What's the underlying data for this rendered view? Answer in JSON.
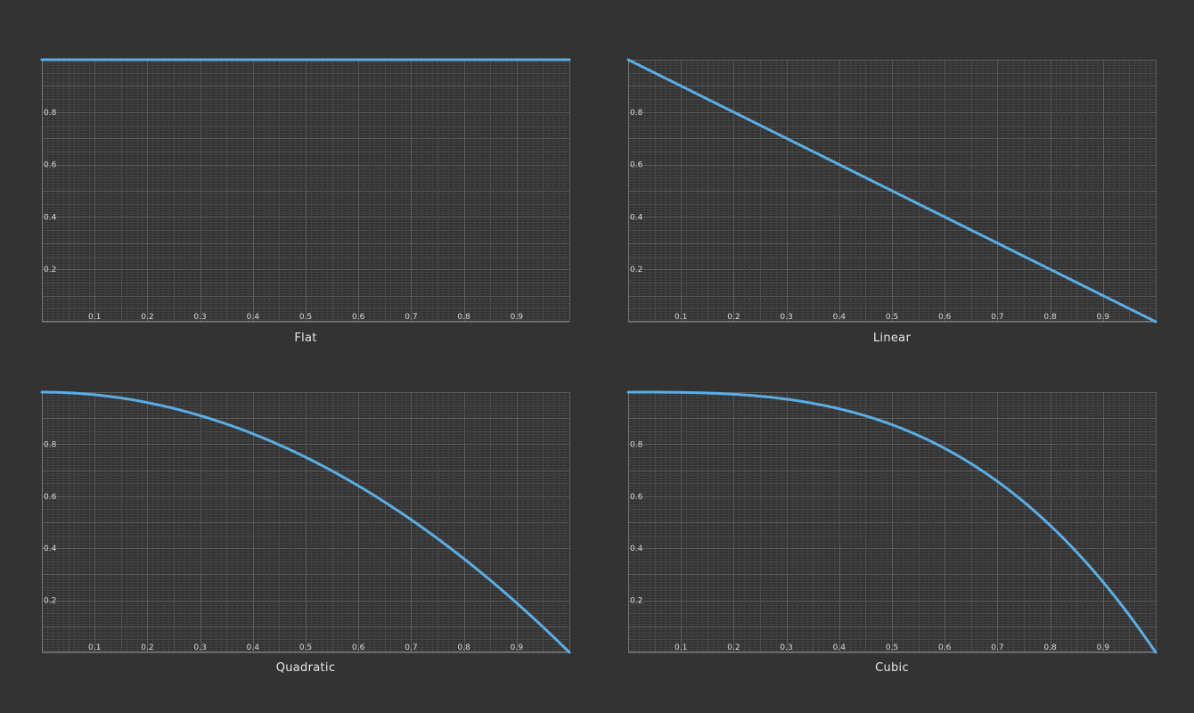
{
  "colors": {
    "background": "#333333",
    "curve": "#5aaee6",
    "grid_major": "#5e5e5e",
    "grid_medium": "#4c4c4c",
    "grid_minor": "#414141",
    "axis": "#7a7a7a",
    "tick_label": "#d8d8d8",
    "caption": "#e6e6e6"
  },
  "chart_data": [
    {
      "type": "line",
      "title": "Flat",
      "function": "y = 1",
      "x": [
        0,
        0.1,
        0.2,
        0.3,
        0.4,
        0.5,
        0.6,
        0.7,
        0.8,
        0.9,
        1.0
      ],
      "y": [
        1,
        1,
        1,
        1,
        1,
        1,
        1,
        1,
        1,
        1,
        1
      ],
      "xlim": [
        0,
        1
      ],
      "ylim": [
        0,
        1
      ],
      "x_tick_labels": [
        "0.1",
        "0.2",
        "0.3",
        "0.4",
        "0.5",
        "0.6",
        "0.7",
        "0.8",
        "0.9"
      ],
      "y_tick_labels": [
        "0.2",
        "0.4",
        "0.6",
        "0.8"
      ],
      "grid": true
    },
    {
      "type": "line",
      "title": "Linear",
      "function": "y = 1 - x",
      "x": [
        0,
        0.1,
        0.2,
        0.3,
        0.4,
        0.5,
        0.6,
        0.7,
        0.8,
        0.9,
        1.0
      ],
      "y": [
        1,
        0.9,
        0.8,
        0.7,
        0.6,
        0.5,
        0.4,
        0.3,
        0.2,
        0.1,
        0
      ],
      "xlim": [
        0,
        1
      ],
      "ylim": [
        0,
        1
      ],
      "x_tick_labels": [
        "0.1",
        "0.2",
        "0.3",
        "0.4",
        "0.5",
        "0.6",
        "0.7",
        "0.8",
        "0.9"
      ],
      "y_tick_labels": [
        "0.2",
        "0.4",
        "0.6",
        "0.8"
      ],
      "grid": true
    },
    {
      "type": "line",
      "title": "Quadratic",
      "function": "y = 1 - x^2",
      "x": [
        0,
        0.1,
        0.2,
        0.3,
        0.4,
        0.5,
        0.6,
        0.7,
        0.8,
        0.9,
        1.0
      ],
      "y": [
        1,
        0.99,
        0.96,
        0.91,
        0.84,
        0.75,
        0.64,
        0.51,
        0.36,
        0.19,
        0
      ],
      "xlim": [
        0,
        1
      ],
      "ylim": [
        0,
        1
      ],
      "x_tick_labels": [
        "0.1",
        "0.2",
        "0.3",
        "0.4",
        "0.5",
        "0.6",
        "0.7",
        "0.8",
        "0.9"
      ],
      "y_tick_labels": [
        "0.2",
        "0.4",
        "0.6",
        "0.8"
      ],
      "grid": true
    },
    {
      "type": "line",
      "title": "Cubic",
      "function": "y = 1 - x^3",
      "x": [
        0,
        0.1,
        0.2,
        0.3,
        0.4,
        0.5,
        0.6,
        0.7,
        0.8,
        0.9,
        1.0
      ],
      "y": [
        1,
        0.999,
        0.992,
        0.973,
        0.936,
        0.875,
        0.784,
        0.657,
        0.488,
        0.271,
        0
      ],
      "xlim": [
        0,
        1
      ],
      "ylim": [
        0,
        1
      ],
      "x_tick_labels": [
        "0.1",
        "0.2",
        "0.3",
        "0.4",
        "0.5",
        "0.6",
        "0.7",
        "0.8",
        "0.9"
      ],
      "y_tick_labels": [
        "0.2",
        "0.4",
        "0.6",
        "0.8"
      ],
      "grid": true
    }
  ],
  "panels": [
    {
      "caption": "Flat"
    },
    {
      "caption": "Linear"
    },
    {
      "caption": "Quadratic"
    },
    {
      "caption": "Cubic"
    }
  ]
}
